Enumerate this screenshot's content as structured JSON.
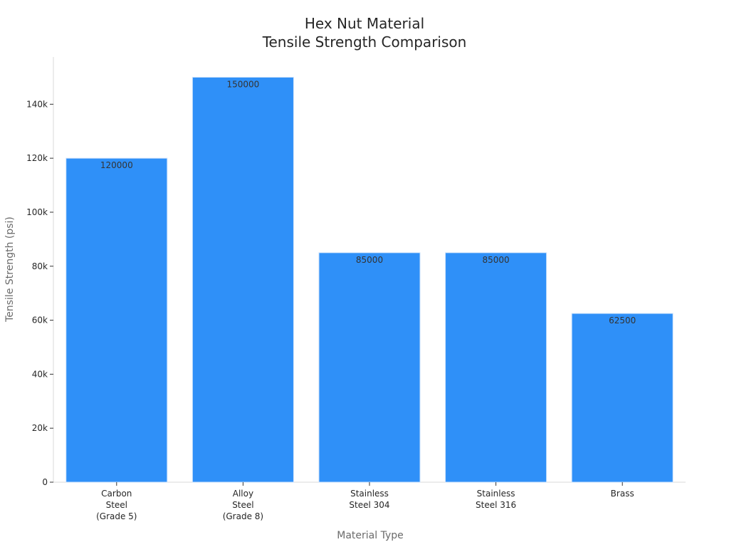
{
  "chart_data": {
    "type": "bar",
    "title_lines": [
      "Hex Nut Material",
      "Tensile Strength Comparison"
    ],
    "xlabel": "Material Type",
    "ylabel": "Tensile Strength (psi)",
    "categories": [
      [
        "Carbon",
        "Steel",
        "(Grade 5)"
      ],
      [
        "Alloy",
        "Steel",
        "(Grade 8)"
      ],
      [
        "Stainless",
        "Steel 304"
      ],
      [
        "Stainless",
        "Steel 316"
      ],
      [
        "Brass"
      ]
    ],
    "values": [
      120000,
      150000,
      85000,
      85000,
      62500
    ],
    "data_labels": [
      "120000",
      "150000",
      "85000",
      "85000",
      "62500"
    ],
    "yticks": [
      0,
      20000,
      40000,
      60000,
      80000,
      100000,
      120000,
      140000
    ],
    "ytick_labels": [
      "0",
      "20k",
      "40k",
      "60k",
      "80k",
      "100k",
      "120k",
      "140k"
    ],
    "ylim": [
      0,
      157500
    ],
    "bar_color": "#2f90f8",
    "bar_edge_color": "#cfe3fb",
    "grid": false,
    "legend": "none"
  }
}
